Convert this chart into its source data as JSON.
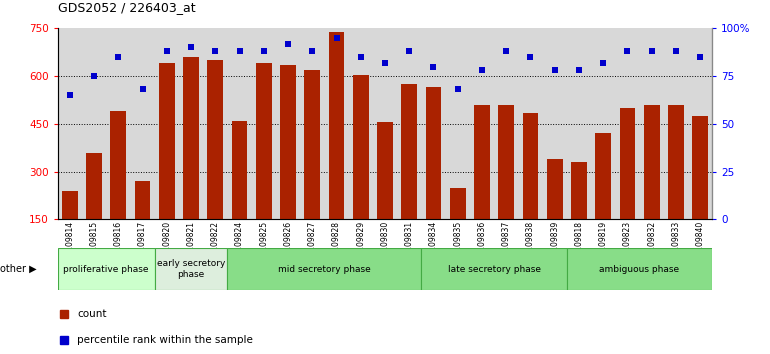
{
  "title": "GDS2052 / 226403_at",
  "samples": [
    "GSM109814",
    "GSM109815",
    "GSM109816",
    "GSM109817",
    "GSM109820",
    "GSM109821",
    "GSM109822",
    "GSM109824",
    "GSM109825",
    "GSM109826",
    "GSM109827",
    "GSM109828",
    "GSM109829",
    "GSM109830",
    "GSM109831",
    "GSM109834",
    "GSM109835",
    "GSM109836",
    "GSM109837",
    "GSM109838",
    "GSM109839",
    "GSM109818",
    "GSM109819",
    "GSM109823",
    "GSM109832",
    "GSM109833",
    "GSM109840"
  ],
  "counts": [
    240,
    360,
    490,
    270,
    640,
    660,
    650,
    460,
    640,
    635,
    620,
    740,
    605,
    455,
    575,
    565,
    250,
    510,
    510,
    485,
    340,
    330,
    420,
    500,
    510,
    510,
    475
  ],
  "percentile_rank": [
    65,
    75,
    85,
    68,
    88,
    90,
    88,
    88,
    88,
    92,
    88,
    95,
    85,
    82,
    88,
    80,
    68,
    78,
    88,
    85,
    78,
    78,
    82,
    88,
    88,
    88,
    85
  ],
  "bar_color": "#aa2200",
  "dot_color": "#0000cc",
  "ylim_left": [
    150,
    750
  ],
  "ylim_right": [
    0,
    100
  ],
  "yticks_left": [
    150,
    300,
    450,
    600,
    750
  ],
  "yticks_right": [
    0,
    25,
    50,
    75,
    100
  ],
  "phases": [
    {
      "label": "proliferative phase",
      "start": 0,
      "end": 4,
      "color": "#ccffcc"
    },
    {
      "label": "early secretory\nphase",
      "start": 4,
      "end": 7,
      "color": "#ddeedd"
    },
    {
      "label": "mid secretory phase",
      "start": 7,
      "end": 15,
      "color": "#88dd88"
    },
    {
      "label": "late secretory phase",
      "start": 15,
      "end": 21,
      "color": "#88dd88"
    },
    {
      "label": "ambiguous phase",
      "start": 21,
      "end": 27,
      "color": "#88dd88"
    }
  ],
  "other_label": "other",
  "legend_count_label": "count",
  "legend_percentile_label": "percentile rank within the sample",
  "plot_bg": "#d8d8d8",
  "tick_bg": "#cccccc"
}
